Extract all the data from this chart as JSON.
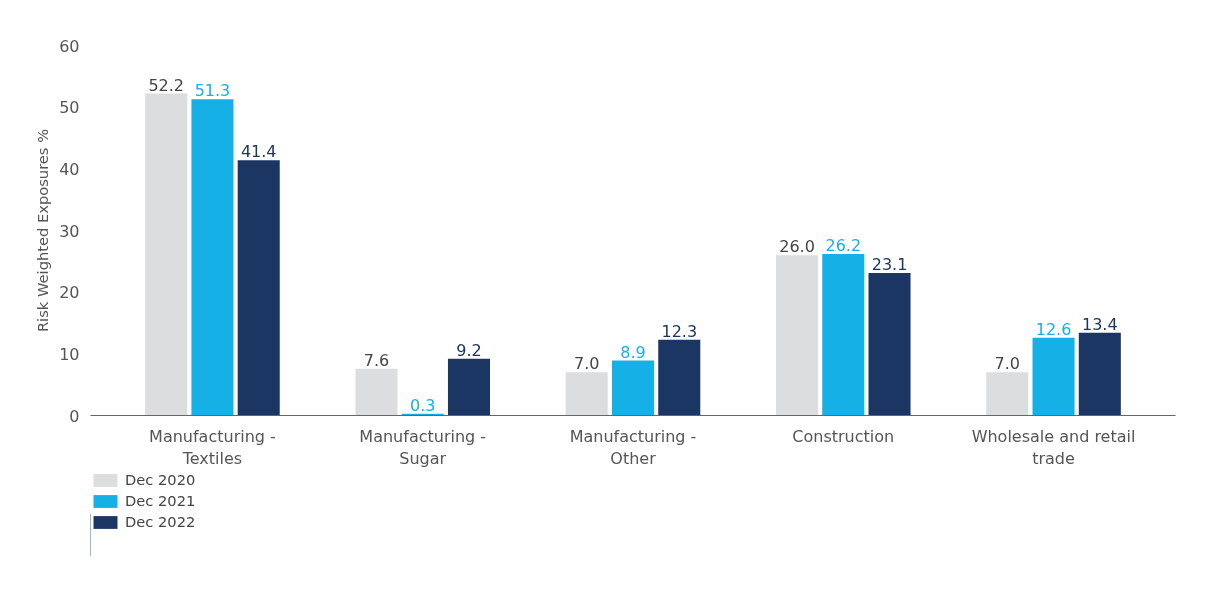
{
  "chart_data": {
    "type": "bar",
    "ylabel": "Risk Weighted Exposures %",
    "categories": [
      "Manufacturing -\nTextiles",
      "Manufacturing -\nSugar",
      "Manufacturing -\nOther",
      "Construction",
      "Wholesale and retail\ntrade"
    ],
    "series": [
      {
        "name": "Dec 2020",
        "color": "#dcdddf",
        "values": [
          52.2,
          7.6,
          7.0,
          26.0,
          7.0
        ],
        "value_labels": [
          "52.2",
          "7.6",
          "7.0",
          "26.0",
          "7.0"
        ]
      },
      {
        "name": "Dec 2021",
        "color": "#15b0e5",
        "values": [
          51.3,
          0.3,
          8.9,
          26.2,
          12.6
        ],
        "value_labels": [
          "51.3",
          "0.3",
          "8.9",
          "26.2",
          "12.6"
        ]
      },
      {
        "name": "Dec 2022",
        "color": "#1c3664",
        "values": [
          41.4,
          9.2,
          12.3,
          23.1,
          13.4
        ],
        "value_labels": [
          "41.4",
          "9.2",
          "12.3",
          "23.1",
          "13.4"
        ]
      }
    ],
    "ylim": [
      0,
      60
    ],
    "yticks": [
      0,
      10,
      20,
      30,
      40,
      50,
      60
    ],
    "grid": false,
    "legend": "bottom left"
  }
}
